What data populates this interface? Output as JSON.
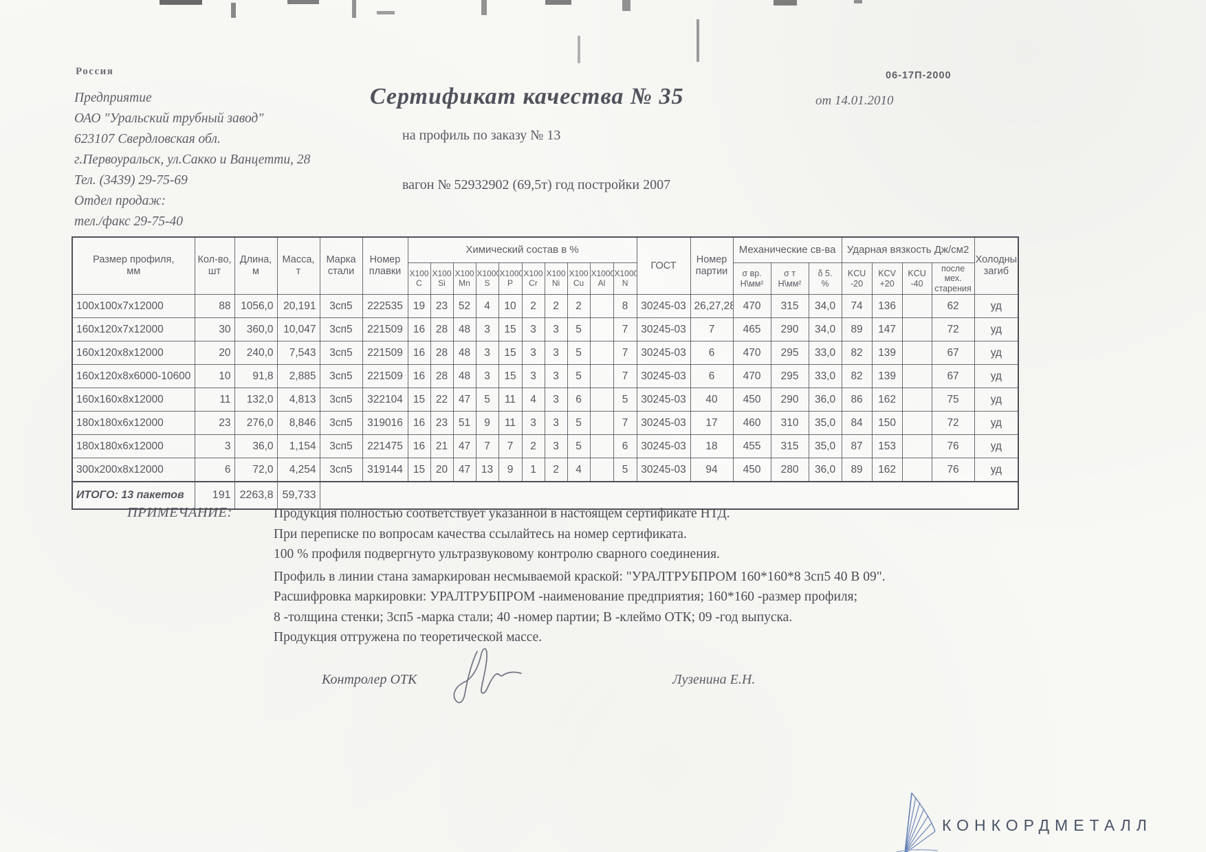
{
  "doc": {
    "country": "Россия",
    "form_code": "06-17П-2000",
    "letterhead": [
      "Предприятие",
      "ОАО \"Уральский трубный завод\"",
      "623107 Свердловская обл.",
      "г.Первоуральск, ул.Сакко и Ванцетти, 28",
      "Тел. (3439) 29-75-69",
      "Отдел продаж:",
      "тел./факс  29-75-40"
    ],
    "title": "Сертификат качества  № 35",
    "date": "от 14.01.2010",
    "subtitle": "на профиль по заказу № 13",
    "wagon": "вагон № 52932902 (69,5т) год постройки 2007"
  },
  "table": {
    "main_headers": [
      "Размер профиля,\nмм",
      "Кол-во,\nшт",
      "Длина,\nм",
      "Масса,\nт",
      "Марка\nстали",
      "Номер\nплавки"
    ],
    "chem_group": "Химический состав  в %",
    "chem_cols": [
      "X100\nC",
      "X100\nSi",
      "X100\nMn",
      "X1000\nS",
      "X1000\nP",
      "X100\nCr",
      "X100\nNi",
      "X100\nCu",
      "X1000\nAl",
      "X1000\nN"
    ],
    "gost": "ГОСТ",
    "party": "Номер\nпартии",
    "mech_group": "Механические св-ва",
    "mech_cols": [
      "σ вр.\nН\\мм²",
      "σ т\nН\\мм²",
      "δ 5.\n%"
    ],
    "impact_group": "Ударная вязкость Дж/см2",
    "impact_cols": [
      "KCU\n-20",
      "KCV\n+20",
      "KCU\n-40",
      "после мех.\nстарения"
    ],
    "cold": "Холодный\nзагиб",
    "rows": [
      [
        "100x100x7x12000",
        "88",
        "1056,0",
        "20,191",
        "3сп5",
        "222535",
        "19",
        "23",
        "52",
        "4",
        "10",
        "2",
        "2",
        "2",
        "",
        "8",
        "30245-03",
        "26,27,28",
        "470",
        "315",
        "34,0",
        "74",
        "136",
        "",
        "62",
        "уд"
      ],
      [
        "160x120x7x12000",
        "30",
        "360,0",
        "10,047",
        "3сп5",
        "221509",
        "16",
        "28",
        "48",
        "3",
        "15",
        "3",
        "3",
        "5",
        "",
        "7",
        "30245-03",
        "7",
        "465",
        "290",
        "34,0",
        "89",
        "147",
        "",
        "72",
        "уд"
      ],
      [
        "160x120x8x12000",
        "20",
        "240,0",
        "7,543",
        "3сп5",
        "221509",
        "16",
        "28",
        "48",
        "3",
        "15",
        "3",
        "3",
        "5",
        "",
        "7",
        "30245-03",
        "6",
        "470",
        "295",
        "33,0",
        "82",
        "139",
        "",
        "67",
        "уд"
      ],
      [
        "160x120x8x6000-10600",
        "10",
        "91,8",
        "2,885",
        "3сп5",
        "221509",
        "16",
        "28",
        "48",
        "3",
        "15",
        "3",
        "3",
        "5",
        "",
        "7",
        "30245-03",
        "6",
        "470",
        "295",
        "33,0",
        "82",
        "139",
        "",
        "67",
        "уд"
      ],
      [
        "160x160x8x12000",
        "11",
        "132,0",
        "4,813",
        "3сп5",
        "322104",
        "15",
        "22",
        "47",
        "5",
        "11",
        "4",
        "3",
        "6",
        "",
        "5",
        "30245-03",
        "40",
        "450",
        "290",
        "36,0",
        "86",
        "162",
        "",
        "75",
        "уд"
      ],
      [
        "180x180x6x12000",
        "23",
        "276,0",
        "8,846",
        "3сп5",
        "319016",
        "16",
        "23",
        "51",
        "9",
        "11",
        "3",
        "3",
        "5",
        "",
        "7",
        "30245-03",
        "17",
        "460",
        "310",
        "35,0",
        "84",
        "150",
        "",
        "72",
        "уд"
      ],
      [
        "180x180x6x12000",
        "3",
        "36,0",
        "1,154",
        "3сп5",
        "221475",
        "16",
        "21",
        "47",
        "7",
        "7",
        "2",
        "3",
        "5",
        "",
        "6",
        "30245-03",
        "18",
        "455",
        "315",
        "35,0",
        "87",
        "153",
        "",
        "76",
        "уд"
      ],
      [
        "300x200x8x12000",
        "6",
        "72,0",
        "4,254",
        "3сп5",
        "319144",
        "15",
        "20",
        "47",
        "13",
        "9",
        "1",
        "2",
        "4",
        "",
        "5",
        "30245-03",
        "94",
        "450",
        "280",
        "36,0",
        "89",
        "162",
        "",
        "76",
        "уд"
      ]
    ],
    "total": [
      "ИТОГО: 13 пакетов",
      "191",
      "2263,8",
      "59,733"
    ]
  },
  "notes": {
    "label": "ПРИМЕЧАНИЕ:",
    "lines": [
      "Продукция полностью соответствует указанной в настоящем сертификате НТД.",
      "При переписке по вопросам качества ссылайтесь на номер сертификата.",
      "100 % профиля подвергнуто ультразвуковому контролю сварного соединения.",
      "Профиль в линии стана замаркирован несмываемой краской: \"УРАЛТРУБПРОМ  160*160*8  3сп5  40  В  09\".",
      "Расшифровка маркировки: УРАЛТРУБПРОМ -наименование предприятия; 160*160 -размер профиля;",
      "8 -толщина стенки; 3сп5 -марка стали; 40 -номер партии; В -клеймо ОТК; 09 -год выпуска.",
      "Продукция отгружена по теоретической массе."
    ]
  },
  "signature": {
    "controller": "Контролер ОТК",
    "name": "Лузенина Е.Н."
  },
  "logo_text": "КОНКОРДМЕТАЛЛ"
}
